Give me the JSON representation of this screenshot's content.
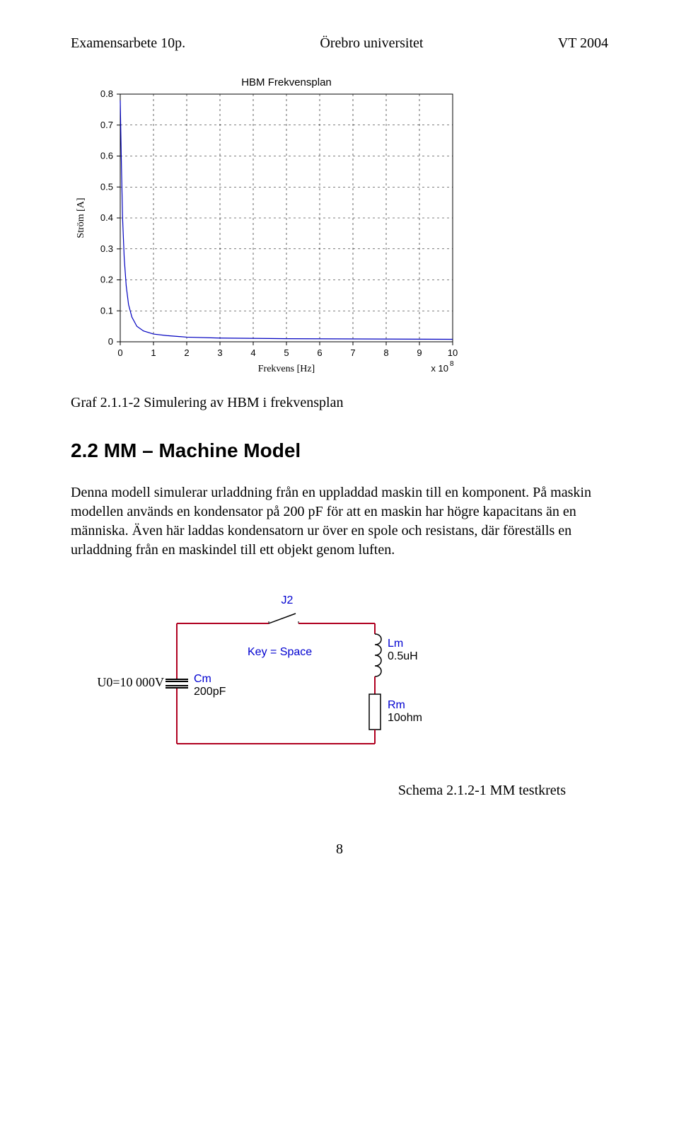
{
  "header": {
    "left": "Examensarbete 10p.",
    "center": "Örebro universitet",
    "right": "VT 2004"
  },
  "chart": {
    "type": "line",
    "title": "HBM Frekvensplan",
    "title_fontsize": 15,
    "xlabel": "Frekvens [Hz]",
    "ylabel": "Ström [A]",
    "label_fontsize": 14,
    "tick_fontsize": 13,
    "xlim": [
      0,
      10
    ],
    "ylim": [
      0,
      0.8
    ],
    "xticks": [
      0,
      1,
      2,
      3,
      4,
      5,
      6,
      7,
      8,
      9,
      10
    ],
    "yticks": [
      0,
      0.1,
      0.2,
      0.3,
      0.4,
      0.5,
      0.6,
      0.7,
      0.8
    ],
    "x_exponent_label": "x 10",
    "x_exponent_sup": "8",
    "background_color": "#ffffff",
    "axis_color": "#000000",
    "grid_color": "#000000",
    "grid_dash": "3,4",
    "line_color": "#0000c0",
    "line_width": 1.2,
    "data_x": [
      0,
      0.03,
      0.07,
      0.12,
      0.18,
      0.25,
      0.35,
      0.5,
      0.7,
      1.0,
      1.4,
      2.0,
      3.0,
      5.0,
      10.0
    ],
    "data_y": [
      0.78,
      0.6,
      0.4,
      0.27,
      0.18,
      0.12,
      0.08,
      0.05,
      0.035,
      0.025,
      0.02,
      0.015,
      0.012,
      0.01,
      0.008
    ]
  },
  "chart_caption": "Graf 2.1.1-2 Simulering av HBM i frekvensplan",
  "section_title": "2.2  MM – Machine Model",
  "body_text": "Denna modell simulerar urladdning från en uppladdad maskin till en komponent. På maskin modellen används en kondensator på 200 pF för att en maskin har högre kapacitans än en människa. Även här laddas kondensatorn ur över en spole och resistans, där föreställs en urladdning från en maskindel till ett objekt genom luften.",
  "schematic": {
    "type": "circuit",
    "wire_color": "#b00020",
    "wire_width": 2,
    "text_color_blue": "#0000d0",
    "text_color_black": "#000000",
    "source_label": "U0=10 000V",
    "cap_name": "Cm",
    "cap_value": "200pF",
    "switch_name": "J2",
    "switch_hint": "Key = Space",
    "inductor_name": "Lm",
    "inductor_value": "0.5uH",
    "resistor_name": "Rm",
    "resistor_value": "10ohm",
    "font_label": 16,
    "font_value": 16
  },
  "schematic_caption": "Schema 2.1.2-1 MM testkrets",
  "page_number": "8"
}
